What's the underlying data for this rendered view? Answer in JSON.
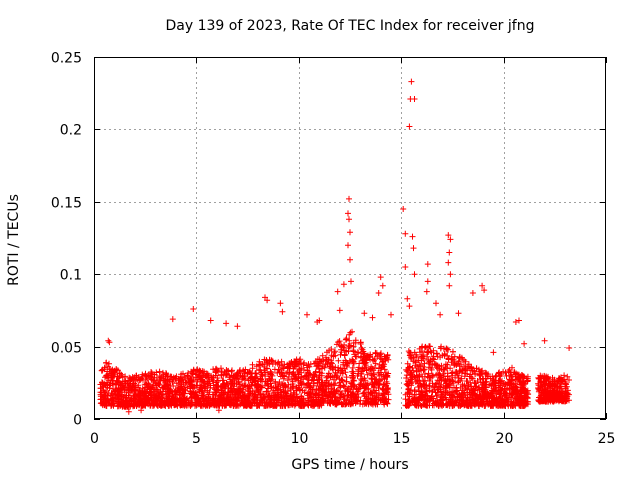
{
  "chart_data": {
    "type": "scatter",
    "title": "Day 139 of 2023, Rate Of TEC Index for receiver jfng",
    "xlabel": "GPS time / hours",
    "ylabel": "ROTI / TECUs",
    "xlim": [
      0,
      25
    ],
    "ylim": [
      0,
      0.25
    ],
    "xticks": [
      0,
      5,
      10,
      15,
      20,
      25
    ],
    "yticks": [
      0,
      0.05,
      0.1,
      0.15,
      0.2,
      0.25
    ],
    "ytick_labels": [
      "0",
      "0.05",
      "0.1",
      "0.15",
      "0.2",
      "0.25"
    ],
    "grid": true,
    "marker": "+",
    "color": "#ff0000",
    "density_profile": [
      {
        "x": 0.3,
        "base": 0.01,
        "top": 0.032
      },
      {
        "x": 0.6,
        "base": 0.009,
        "top": 0.04
      },
      {
        "x": 1.0,
        "base": 0.009,
        "top": 0.036
      },
      {
        "x": 1.5,
        "base": 0.008,
        "top": 0.03
      },
      {
        "x": 2.0,
        "base": 0.009,
        "top": 0.03
      },
      {
        "x": 2.5,
        "base": 0.009,
        "top": 0.032
      },
      {
        "x": 3.0,
        "base": 0.009,
        "top": 0.034
      },
      {
        "x": 3.5,
        "base": 0.009,
        "top": 0.032
      },
      {
        "x": 4.0,
        "base": 0.009,
        "top": 0.03
      },
      {
        "x": 4.5,
        "base": 0.009,
        "top": 0.032
      },
      {
        "x": 5.0,
        "base": 0.009,
        "top": 0.035
      },
      {
        "x": 5.5,
        "base": 0.009,
        "top": 0.032
      },
      {
        "x": 6.0,
        "base": 0.009,
        "top": 0.036
      },
      {
        "x": 6.5,
        "base": 0.009,
        "top": 0.034
      },
      {
        "x": 7.0,
        "base": 0.009,
        "top": 0.034
      },
      {
        "x": 7.5,
        "base": 0.009,
        "top": 0.036
      },
      {
        "x": 8.0,
        "base": 0.009,
        "top": 0.04
      },
      {
        "x": 8.5,
        "base": 0.009,
        "top": 0.042
      },
      {
        "x": 9.0,
        "base": 0.009,
        "top": 0.04
      },
      {
        "x": 9.5,
        "base": 0.009,
        "top": 0.04
      },
      {
        "x": 10.0,
        "base": 0.009,
        "top": 0.042
      },
      {
        "x": 10.5,
        "base": 0.009,
        "top": 0.04
      },
      {
        "x": 11.0,
        "base": 0.009,
        "top": 0.045
      },
      {
        "x": 11.5,
        "base": 0.01,
        "top": 0.048
      },
      {
        "x": 12.0,
        "base": 0.01,
        "top": 0.055
      },
      {
        "x": 12.5,
        "base": 0.01,
        "top": 0.062
      },
      {
        "x": 13.0,
        "base": 0.01,
        "top": 0.055
      },
      {
        "x": 13.5,
        "base": 0.01,
        "top": 0.045
      },
      {
        "x": 14.0,
        "base": 0.01,
        "top": 0.048
      },
      {
        "x": 14.4,
        "base": 0.01,
        "top": 0.045
      },
      {
        "x": 14.6,
        "base": null,
        "top": null
      },
      {
        "x": 15.2,
        "base": 0.009,
        "top": 0.05
      },
      {
        "x": 15.5,
        "base": 0.009,
        "top": 0.045
      },
      {
        "x": 16.0,
        "base": 0.009,
        "top": 0.05
      },
      {
        "x": 16.5,
        "base": 0.009,
        "top": 0.052
      },
      {
        "x": 17.0,
        "base": 0.009,
        "top": 0.05
      },
      {
        "x": 17.5,
        "base": 0.009,
        "top": 0.048
      },
      {
        "x": 18.0,
        "base": 0.009,
        "top": 0.042
      },
      {
        "x": 18.5,
        "base": 0.009,
        "top": 0.036
      },
      {
        "x": 19.0,
        "base": 0.009,
        "top": 0.034
      },
      {
        "x": 19.5,
        "base": 0.009,
        "top": 0.03
      },
      {
        "x": 20.0,
        "base": 0.009,
        "top": 0.034
      },
      {
        "x": 20.5,
        "base": 0.009,
        "top": 0.036
      },
      {
        "x": 21.0,
        "base": 0.009,
        "top": 0.03
      },
      {
        "x": 21.9,
        "base": 0.012,
        "top": 0.03
      },
      {
        "x": 22.6,
        "base": 0.012,
        "top": 0.028
      },
      {
        "x": 23.2,
        "base": 0.012,
        "top": 0.032
      }
    ],
    "highlight_points": [
      {
        "x": 15.5,
        "y": 0.233
      },
      {
        "x": 15.45,
        "y": 0.221
      },
      {
        "x": 15.65,
        "y": 0.221
      },
      {
        "x": 15.4,
        "y": 0.202
      },
      {
        "x": 12.45,
        "y": 0.152
      },
      {
        "x": 12.4,
        "y": 0.142
      },
      {
        "x": 12.45,
        "y": 0.138
      },
      {
        "x": 12.5,
        "y": 0.129
      },
      {
        "x": 12.4,
        "y": 0.12
      },
      {
        "x": 12.5,
        "y": 0.11
      },
      {
        "x": 12.55,
        "y": 0.095
      },
      {
        "x": 15.1,
        "y": 0.145
      },
      {
        "x": 15.2,
        "y": 0.128
      },
      {
        "x": 15.2,
        "y": 0.105
      },
      {
        "x": 15.55,
        "y": 0.126
      },
      {
        "x": 15.6,
        "y": 0.118
      },
      {
        "x": 15.65,
        "y": 0.1
      },
      {
        "x": 17.3,
        "y": 0.127
      },
      {
        "x": 17.4,
        "y": 0.124
      },
      {
        "x": 17.35,
        "y": 0.115
      },
      {
        "x": 17.3,
        "y": 0.108
      },
      {
        "x": 17.4,
        "y": 0.1
      },
      {
        "x": 17.35,
        "y": 0.092
      },
      {
        "x": 16.3,
        "y": 0.107
      },
      {
        "x": 16.3,
        "y": 0.095
      },
      {
        "x": 16.25,
        "y": 0.088
      },
      {
        "x": 14.0,
        "y": 0.098
      },
      {
        "x": 14.1,
        "y": 0.092
      },
      {
        "x": 13.9,
        "y": 0.087
      },
      {
        "x": 12.2,
        "y": 0.093
      },
      {
        "x": 11.9,
        "y": 0.088
      },
      {
        "x": 18.95,
        "y": 0.092
      },
      {
        "x": 19.05,
        "y": 0.089
      },
      {
        "x": 18.5,
        "y": 0.087
      },
      {
        "x": 8.35,
        "y": 0.084
      },
      {
        "x": 8.45,
        "y": 0.082
      },
      {
        "x": 9.1,
        "y": 0.08
      },
      {
        "x": 9.2,
        "y": 0.074
      },
      {
        "x": 4.85,
        "y": 0.076
      },
      {
        "x": 10.4,
        "y": 0.072
      },
      {
        "x": 12.0,
        "y": 0.075
      },
      {
        "x": 13.2,
        "y": 0.073
      },
      {
        "x": 16.7,
        "y": 0.08
      },
      {
        "x": 16.9,
        "y": 0.072
      },
      {
        "x": 17.8,
        "y": 0.073
      },
      {
        "x": 15.3,
        "y": 0.083
      },
      {
        "x": 15.4,
        "y": 0.078
      },
      {
        "x": 20.6,
        "y": 0.067
      },
      {
        "x": 20.75,
        "y": 0.068
      },
      {
        "x": 22.0,
        "y": 0.054
      },
      {
        "x": 23.2,
        "y": 0.049
      },
      {
        "x": 3.85,
        "y": 0.069
      },
      {
        "x": 5.7,
        "y": 0.068
      },
      {
        "x": 6.45,
        "y": 0.066
      },
      {
        "x": 7.0,
        "y": 0.064
      },
      {
        "x": 0.7,
        "y": 0.054
      },
      {
        "x": 0.75,
        "y": 0.053
      },
      {
        "x": 10.9,
        "y": 0.067
      },
      {
        "x": 11.0,
        "y": 0.068
      },
      {
        "x": 13.6,
        "y": 0.07
      },
      {
        "x": 14.5,
        "y": 0.072
      },
      {
        "x": 19.5,
        "y": 0.046
      },
      {
        "x": 21.0,
        "y": 0.052
      },
      {
        "x": 1.7,
        "y": 0.005
      },
      {
        "x": 2.3,
        "y": 0.006
      },
      {
        "x": 6.1,
        "y": 0.006
      }
    ]
  }
}
